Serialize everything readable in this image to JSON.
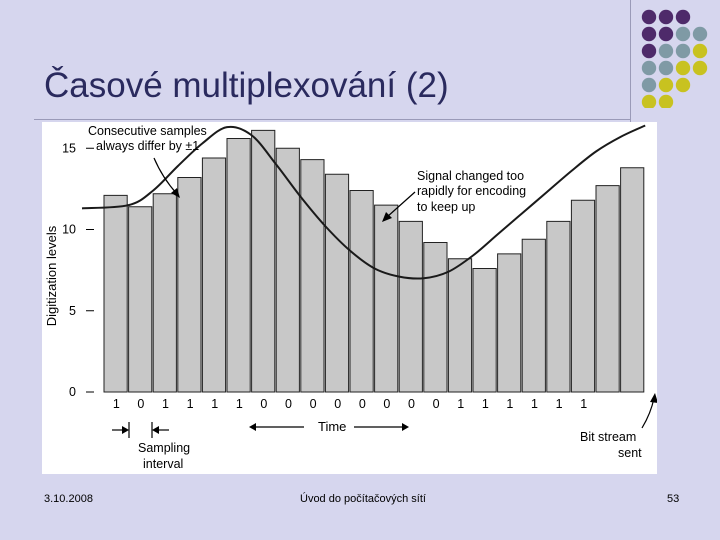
{
  "slide": {
    "title": "Časové multiplexování (2)",
    "footer_date": "3.10.2008",
    "footer_center": "Úvod do počítačových sítí",
    "footer_page": "53"
  },
  "colors": {
    "background": "#d6d6ee",
    "title": "#2a2a5e",
    "dot_purple": "#4e2a6a",
    "dot_gray": "#7f9aa5",
    "dot_yellow": "#c8c220",
    "bar_fill": "#c8c8c8"
  },
  "decoration": {
    "dots": [
      [
        "dot_purple",
        "dot_purple",
        "dot_purple",
        null
      ],
      [
        "dot_purple",
        "dot_purple",
        "dot_gray",
        "dot_gray"
      ],
      [
        "dot_purple",
        "dot_gray",
        "dot_gray",
        "dot_yellow"
      ],
      [
        "dot_gray",
        "dot_gray",
        "dot_yellow",
        "dot_yellow"
      ],
      [
        "dot_gray",
        "dot_yellow",
        "dot_yellow",
        null
      ],
      [
        "dot_yellow",
        "dot_yellow",
        null,
        null
      ]
    ]
  },
  "chart_data": {
    "type": "bar",
    "ylabel": "Digitization levels",
    "xlabel": "Time",
    "ylim": [
      0,
      16
    ],
    "yticks": [
      "0",
      "5",
      "10",
      "15"
    ],
    "values": [
      12.1,
      11.4,
      12.2,
      13.2,
      14.4,
      15.6,
      16.1,
      15.0,
      14.3,
      13.4,
      12.4,
      11.5,
      10.5,
      9.2,
      8.2,
      7.6,
      8.5,
      9.4,
      10.5,
      11.8,
      12.7,
      13.8
    ],
    "bits": [
      "1",
      "0",
      "1",
      "1",
      "1",
      "1",
      "0",
      "0",
      "0",
      "0",
      "0",
      "0",
      "0",
      "0",
      "1",
      "1",
      "1",
      "1",
      "1",
      "1"
    ],
    "signal_curve": [
      [
        0,
        11.3
      ],
      [
        1,
        11.5
      ],
      [
        2,
        12.4
      ],
      [
        3,
        13.9
      ],
      [
        4,
        15.3
      ],
      [
        5,
        16.3
      ],
      [
        6,
        15.8
      ],
      [
        7,
        14.0
      ],
      [
        8,
        12.0
      ],
      [
        9,
        10.2
      ],
      [
        10,
        8.7
      ],
      [
        11,
        7.6
      ],
      [
        12,
        7.1
      ],
      [
        13,
        7.0
      ],
      [
        14,
        7.4
      ],
      [
        15,
        8.4
      ],
      [
        16,
        9.7
      ],
      [
        17,
        11.0
      ],
      [
        18,
        12.3
      ],
      [
        19,
        13.6
      ],
      [
        20,
        14.8
      ],
      [
        21,
        15.7
      ],
      [
        22,
        16.4
      ]
    ],
    "annotations": {
      "consecutive": [
        "Consecutive samples",
        "always differ by ±1"
      ],
      "signal_changed": [
        "Signal changed too",
        "rapidly for encoding",
        "to keep up"
      ],
      "sampling": [
        "Sampling",
        "interval"
      ],
      "bitstream": [
        "Bit stream",
        "sent"
      ]
    }
  }
}
